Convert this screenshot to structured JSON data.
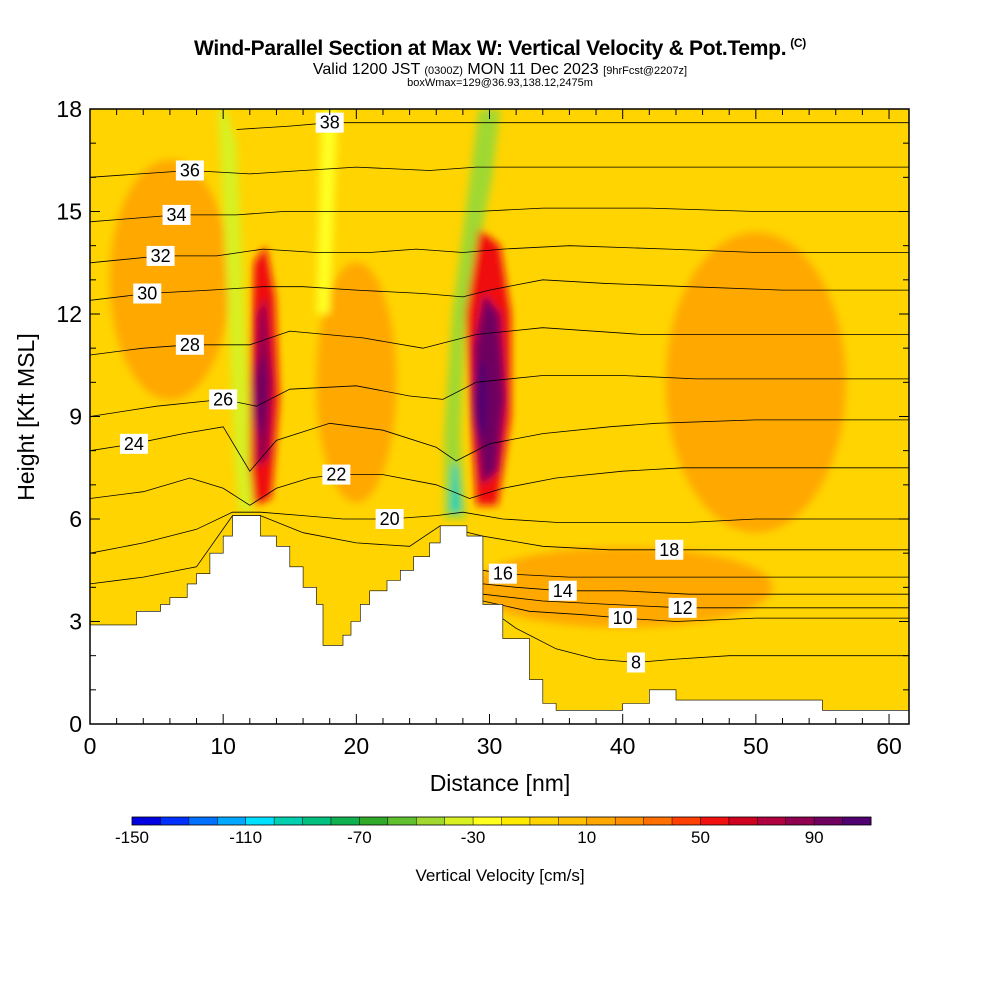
{
  "header": {
    "title": "Wind-Parallel Section at Max W: Vertical Velocity & Pot.Temp.",
    "copyright": "(C)",
    "valid_prefix": "Valid 1200 JST",
    "valid_utc": "(0300Z)",
    "valid_date": "MON 11 Dec 2023",
    "forecast_info": "[9hrFcst@2207z]",
    "box_info": "boxWmax=129@36.93,138.12,2475m"
  },
  "colors": {
    "background": "#ffd400",
    "terrain": "#ffffff",
    "contour": "#000000"
  },
  "chart_data": {
    "type": "heatmap",
    "xlabel": "Distance [nm]",
    "ylabel": "Height [Kft MSL]",
    "xlim": [
      0,
      61.5
    ],
    "ylim": [
      0,
      18
    ],
    "x_ticks": [
      "0",
      "10",
      "20",
      "30",
      "40",
      "50",
      "60"
    ],
    "y_ticks": [
      "0",
      "3",
      "6",
      "9",
      "12",
      "15",
      "18"
    ],
    "colorbar": {
      "label": "Vertical Velocity [cm/s]",
      "tick_labels": [
        "-150",
        "-110",
        "-70",
        "-30",
        "10",
        "50",
        "90"
      ],
      "min": -150,
      "max": 110,
      "step": 10,
      "colors": [
        "#0000e0",
        "#0030ff",
        "#0070ff",
        "#00a8ff",
        "#00e0ff",
        "#00d0b0",
        "#00c080",
        "#10b050",
        "#30a828",
        "#60c030",
        "#a0d830",
        "#d8f020",
        "#ffff20",
        "#ffea00",
        "#ffd400",
        "#ffc000",
        "#ffa800",
        "#ff9000",
        "#ff7000",
        "#ff4000",
        "#f01010",
        "#d00020",
        "#b00040",
        "#900050",
        "#700060",
        "#500070"
      ]
    },
    "terrain_profile": [
      [
        0,
        2.9
      ],
      [
        1,
        2.9
      ],
      [
        3.5,
        2.9
      ],
      [
        3.5,
        3.3
      ],
      [
        5.3,
        3.3
      ],
      [
        5.3,
        3.5
      ],
      [
        6,
        3.5
      ],
      [
        6,
        3.7
      ],
      [
        7.3,
        3.7
      ],
      [
        7.3,
        4.1
      ],
      [
        8,
        4.1
      ],
      [
        8,
        4.4
      ],
      [
        9,
        4.4
      ],
      [
        9,
        5.0
      ],
      [
        10,
        5.0
      ],
      [
        10,
        5.5
      ],
      [
        10.7,
        5.5
      ],
      [
        10.7,
        6.1
      ],
      [
        12.8,
        6.1
      ],
      [
        12.8,
        5.5
      ],
      [
        14,
        5.5
      ],
      [
        14,
        5.2
      ],
      [
        15,
        5.2
      ],
      [
        15,
        4.6
      ],
      [
        16,
        4.6
      ],
      [
        16,
        4.0
      ],
      [
        17,
        4.0
      ],
      [
        17,
        3.5
      ],
      [
        17.5,
        3.5
      ],
      [
        17.5,
        2.3
      ],
      [
        19,
        2.3
      ],
      [
        19,
        2.6
      ],
      [
        19.6,
        2.6
      ],
      [
        19.6,
        3.0
      ],
      [
        20.3,
        3.0
      ],
      [
        20.3,
        3.5
      ],
      [
        21,
        3.5
      ],
      [
        21,
        3.9
      ],
      [
        22.3,
        3.9
      ],
      [
        22.3,
        4.2
      ],
      [
        23.3,
        4.2
      ],
      [
        23.3,
        4.5
      ],
      [
        24.3,
        4.5
      ],
      [
        24.3,
        4.9
      ],
      [
        25.5,
        4.9
      ],
      [
        25.5,
        5.3
      ],
      [
        26.3,
        5.3
      ],
      [
        26.3,
        5.8
      ],
      [
        28.3,
        5.8
      ],
      [
        28.3,
        5.5
      ],
      [
        29.5,
        5.5
      ],
      [
        29.5,
        3.5
      ],
      [
        31,
        3.5
      ],
      [
        31,
        2.5
      ],
      [
        33,
        2.5
      ],
      [
        33,
        1.3
      ],
      [
        34,
        1.3
      ],
      [
        34,
        0.6
      ],
      [
        35,
        0.6
      ],
      [
        35,
        0.4
      ],
      [
        40,
        0.4
      ],
      [
        40,
        0.6
      ],
      [
        42,
        0.6
      ],
      [
        42,
        1.0
      ],
      [
        44,
        1.0
      ],
      [
        44,
        0.7
      ],
      [
        55,
        0.7
      ],
      [
        55,
        0.4
      ],
      [
        61.5,
        0.4
      ]
    ],
    "series": [
      {
        "name": "8",
        "label_pos": [
          41,
          1.8
        ],
        "values": [
          [
            29.5,
            3.5
          ],
          [
            32,
            2.8
          ],
          [
            35,
            2.2
          ],
          [
            38,
            1.9
          ],
          [
            41,
            1.8
          ],
          [
            44,
            1.9
          ],
          [
            48,
            2.0
          ],
          [
            55,
            2.0
          ],
          [
            61.5,
            2.0
          ]
        ]
      },
      {
        "name": "10",
        "label_pos": [
          40,
          3.1
        ],
        "values": [
          [
            29.5,
            3.6
          ],
          [
            33,
            3.3
          ],
          [
            37,
            3.2
          ],
          [
            40,
            3.1
          ],
          [
            44,
            3.0
          ],
          [
            50,
            3.1
          ],
          [
            61.5,
            3.1
          ]
        ]
      },
      {
        "name": "12",
        "label_pos": [
          44.5,
          3.4
        ],
        "values": [
          [
            29.5,
            3.8
          ],
          [
            34,
            3.6
          ],
          [
            39,
            3.5
          ],
          [
            44.5,
            3.4
          ],
          [
            50,
            3.4
          ],
          [
            61.5,
            3.4
          ]
        ]
      },
      {
        "name": "14",
        "label_pos": [
          35.5,
          3.9
        ],
        "values": [
          [
            29.5,
            4.1
          ],
          [
            32,
            4.0
          ],
          [
            35.5,
            3.9
          ],
          [
            40,
            3.9
          ],
          [
            45,
            3.8
          ],
          [
            52,
            3.8
          ],
          [
            61.5,
            3.8
          ]
        ]
      },
      {
        "name": "16",
        "label_pos": [
          31,
          4.4
        ],
        "values": [
          [
            29.5,
            4.5
          ],
          [
            31,
            4.4
          ],
          [
            36,
            4.3
          ],
          [
            42,
            4.3
          ],
          [
            50,
            4.3
          ],
          [
            61.5,
            4.3
          ]
        ]
      },
      {
        "name": "18",
        "label_pos": [
          43.5,
          5.1
        ],
        "values": [
          [
            0,
            4.1
          ],
          [
            4,
            4.3
          ],
          [
            8,
            4.6
          ],
          [
            10.7,
            6.1
          ],
          [
            12.8,
            6.1
          ],
          [
            16,
            5.6
          ],
          [
            20,
            5.3
          ],
          [
            24,
            5.2
          ],
          [
            26.3,
            5.8
          ],
          [
            29.5,
            5.5
          ],
          [
            34,
            5.2
          ],
          [
            39,
            5.1
          ],
          [
            43.5,
            5.1
          ],
          [
            50,
            5.1
          ],
          [
            61.5,
            5.1
          ]
        ]
      },
      {
        "name": "20",
        "label_pos": [
          22.5,
          6.0
        ],
        "values": [
          [
            0,
            5.0
          ],
          [
            4,
            5.3
          ],
          [
            8,
            5.7
          ],
          [
            10.7,
            6.2
          ],
          [
            12.8,
            6.2
          ],
          [
            16,
            6.1
          ],
          [
            19,
            6.0
          ],
          [
            22.5,
            6.0
          ],
          [
            26,
            6.1
          ],
          [
            28,
            6.2
          ],
          [
            31,
            6.0
          ],
          [
            35,
            5.9
          ],
          [
            39.5,
            5.9
          ],
          [
            45,
            5.9
          ],
          [
            50,
            6.0
          ],
          [
            61.5,
            6.0
          ]
        ]
      },
      {
        "name": "22",
        "label_pos": [
          18.5,
          7.3
        ],
        "values": [
          [
            0,
            6.6
          ],
          [
            4,
            6.8
          ],
          [
            7.5,
            7.2
          ],
          [
            10,
            6.9
          ],
          [
            12,
            6.4
          ],
          [
            14,
            6.9
          ],
          [
            16.5,
            7.2
          ],
          [
            18.5,
            7.3
          ],
          [
            22,
            7.3
          ],
          [
            26,
            7.0
          ],
          [
            28.5,
            6.6
          ],
          [
            31,
            6.9
          ],
          [
            35,
            7.2
          ],
          [
            40,
            7.4
          ],
          [
            44.5,
            7.5
          ],
          [
            50,
            7.5
          ],
          [
            61.5,
            7.5
          ]
        ]
      },
      {
        "name": "24",
        "label_pos": [
          3.3,
          8.2
        ],
        "values": [
          [
            0,
            8.0
          ],
          [
            3.3,
            8.2
          ],
          [
            7,
            8.5
          ],
          [
            10,
            8.7
          ],
          [
            12,
            7.4
          ],
          [
            14,
            8.3
          ],
          [
            18,
            8.8
          ],
          [
            22,
            8.6
          ],
          [
            26,
            8.1
          ],
          [
            27.5,
            7.7
          ],
          [
            30,
            8.2
          ],
          [
            34,
            8.5
          ],
          [
            39,
            8.7
          ],
          [
            42.5,
            8.8
          ],
          [
            50,
            8.9
          ],
          [
            61.5,
            8.9
          ]
        ]
      },
      {
        "name": "26",
        "label_pos": [
          10,
          9.5
        ],
        "values": [
          [
            0,
            9.0
          ],
          [
            5,
            9.3
          ],
          [
            10,
            9.5
          ],
          [
            12.5,
            9.3
          ],
          [
            15,
            9.8
          ],
          [
            20,
            9.9
          ],
          [
            24,
            9.6
          ],
          [
            26.5,
            9.5
          ],
          [
            29,
            10.0
          ],
          [
            34,
            10.2
          ],
          [
            40,
            10.2
          ],
          [
            45.5,
            10.1
          ],
          [
            52,
            10.1
          ],
          [
            61.5,
            10.1
          ]
        ]
      },
      {
        "name": "28",
        "label_pos": [
          7.5,
          11.1
        ],
        "values": [
          [
            0,
            10.8
          ],
          [
            4,
            11.0
          ],
          [
            7.5,
            11.1
          ],
          [
            12,
            11.1
          ],
          [
            15,
            11.5
          ],
          [
            20.5,
            11.3
          ],
          [
            25,
            11.0
          ],
          [
            29,
            11.4
          ],
          [
            34,
            11.6
          ],
          [
            41.5,
            11.4
          ],
          [
            48,
            11.4
          ],
          [
            55,
            11.4
          ],
          [
            61.5,
            11.4
          ]
        ]
      },
      {
        "name": "30",
        "label_pos": [
          4.3,
          12.6
        ],
        "values": [
          [
            0,
            12.4
          ],
          [
            4.3,
            12.6
          ],
          [
            9,
            12.7
          ],
          [
            13,
            12.8
          ],
          [
            16,
            12.8
          ],
          [
            20,
            12.7
          ],
          [
            25,
            12.6
          ],
          [
            28,
            12.5
          ],
          [
            30,
            12.7
          ],
          [
            34,
            13.0
          ],
          [
            38.5,
            12.9
          ],
          [
            45,
            12.8
          ],
          [
            52,
            12.7
          ],
          [
            61.5,
            12.7
          ]
        ]
      },
      {
        "name": "32",
        "label_pos": [
          5.3,
          13.7
        ],
        "values": [
          [
            0,
            13.5
          ],
          [
            5.3,
            13.7
          ],
          [
            9.5,
            13.7
          ],
          [
            13,
            13.9
          ],
          [
            17,
            13.8
          ],
          [
            21,
            13.8
          ],
          [
            24.5,
            13.9
          ],
          [
            28,
            13.8
          ],
          [
            31,
            13.9
          ],
          [
            36,
            14.0
          ],
          [
            43.5,
            13.9
          ],
          [
            50,
            13.8
          ],
          [
            61.5,
            13.8
          ]
        ]
      },
      {
        "name": "34",
        "label_pos": [
          6.5,
          14.9
        ],
        "values": [
          [
            0,
            14.7
          ],
          [
            6.5,
            14.9
          ],
          [
            11,
            14.9
          ],
          [
            14.5,
            15.0
          ],
          [
            19,
            15.0
          ],
          [
            23,
            15.0
          ],
          [
            25.5,
            15.0
          ],
          [
            29,
            15.0
          ],
          [
            34,
            15.1
          ],
          [
            42,
            15.1
          ],
          [
            50,
            15.0
          ],
          [
            61.5,
            15.0
          ]
        ]
      },
      {
        "name": "36",
        "label_pos": [
          7.5,
          16.2
        ],
        "values": [
          [
            0,
            16.0
          ],
          [
            7.5,
            16.2
          ],
          [
            12,
            16.1
          ],
          [
            16,
            16.2
          ],
          [
            20,
            16.3
          ],
          [
            25.5,
            16.2
          ],
          [
            29,
            16.3
          ],
          [
            35,
            16.3
          ],
          [
            40.5,
            16.3
          ],
          [
            48,
            16.3
          ],
          [
            61.5,
            16.3
          ]
        ]
      },
      {
        "name": "38",
        "label_pos": [
          18,
          17.6
        ],
        "values": [
          [
            11,
            17.4
          ],
          [
            15,
            17.5
          ],
          [
            18,
            17.6
          ],
          [
            22,
            17.6
          ],
          [
            26,
            17.6
          ],
          [
            30,
            17.6
          ],
          [
            35,
            17.6
          ],
          [
            61.5,
            17.6
          ]
        ]
      }
    ],
    "updraft_cores": [
      {
        "x": 12.8,
        "y": 9.6,
        "peak_w": 90
      },
      {
        "x": 29.3,
        "y": 9.5,
        "peak_w": 129
      }
    ]
  }
}
